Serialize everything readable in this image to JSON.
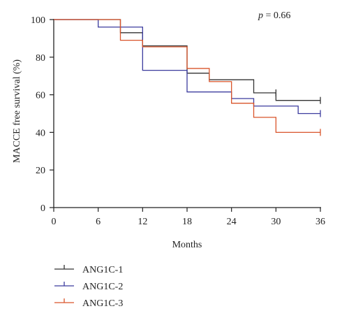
{
  "chart_data": {
    "type": "line",
    "step": true,
    "ylabel": "MACCE free survival (%)",
    "xlabel": "Months",
    "annotation": {
      "italic": "p",
      "rest": " = 0.66"
    },
    "xlim": [
      0,
      36
    ],
    "ylim": [
      0,
      100
    ],
    "xticks": [
      0,
      6,
      12,
      18,
      24,
      30,
      36
    ],
    "yticks": [
      0,
      20,
      40,
      60,
      80,
      100
    ],
    "grid": false,
    "legend": "bottom-left",
    "series": [
      {
        "name": "ANG1C-1",
        "color": "#333333",
        "x": [
          0,
          9,
          12,
          18,
          21,
          27,
          30,
          36
        ],
        "y": [
          100,
          93,
          86,
          71.5,
          68,
          61,
          57,
          57
        ],
        "censor_x": [
          30,
          36
        ]
      },
      {
        "name": "ANG1C-2",
        "color": "#3b3b9e",
        "x": [
          0,
          6,
          12,
          18,
          24,
          27,
          33,
          36
        ],
        "y": [
          100,
          96,
          73,
          61.5,
          58,
          54,
          50,
          50
        ],
        "censor_x": [
          36
        ]
      },
      {
        "name": "ANG1C-3",
        "color": "#d9542a",
        "x": [
          0,
          9,
          12,
          18,
          21,
          24,
          27,
          30,
          36
        ],
        "y": [
          100,
          89,
          85.5,
          74,
          67,
          55.5,
          48,
          40,
          40
        ],
        "censor_x": [
          36
        ]
      }
    ]
  }
}
